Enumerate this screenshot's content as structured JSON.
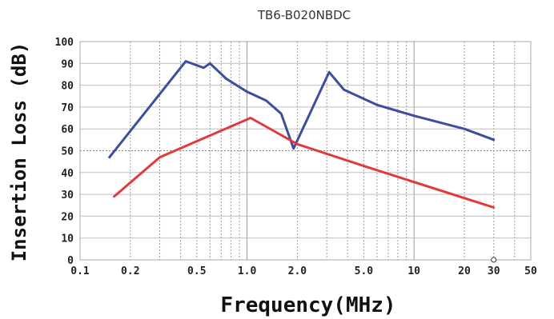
{
  "chart_data": {
    "type": "line",
    "title": "TB6-B020NBDC",
    "xlabel": "Frequency(MHz)",
    "ylabel": "Insertion Loss (dB)",
    "x_scale": "log",
    "xlim": [
      0.1,
      50
    ],
    "ylim": [
      0,
      100
    ],
    "x_tick_labels": [
      "0.1",
      "0.2",
      "0.5",
      "1.0",
      "2.0",
      "5.0",
      "10",
      "20",
      "30",
      "50"
    ],
    "y_tick_labels": [
      "0",
      "10",
      "20",
      "30",
      "40",
      "50",
      "60",
      "70",
      "80",
      "90",
      "100"
    ],
    "grid": true,
    "legend": "none",
    "series": [
      {
        "color": "#3b4f9e",
        "x": [
          0.15,
          0.43,
          0.55,
          0.6,
          0.75,
          1.0,
          1.3,
          1.6,
          1.9,
          3.1,
          3.8,
          6.0,
          10.0,
          20.0,
          30.0
        ],
        "y": [
          47,
          91,
          88,
          90,
          83,
          77,
          73,
          67,
          51,
          86,
          78,
          71,
          66,
          60,
          55
        ]
      },
      {
        "color": "#e23a3a",
        "x": [
          0.16,
          0.3,
          1.05,
          2.0,
          5.0,
          30.0
        ],
        "y": [
          29,
          47,
          65,
          53,
          43,
          24
        ]
      }
    ]
  }
}
